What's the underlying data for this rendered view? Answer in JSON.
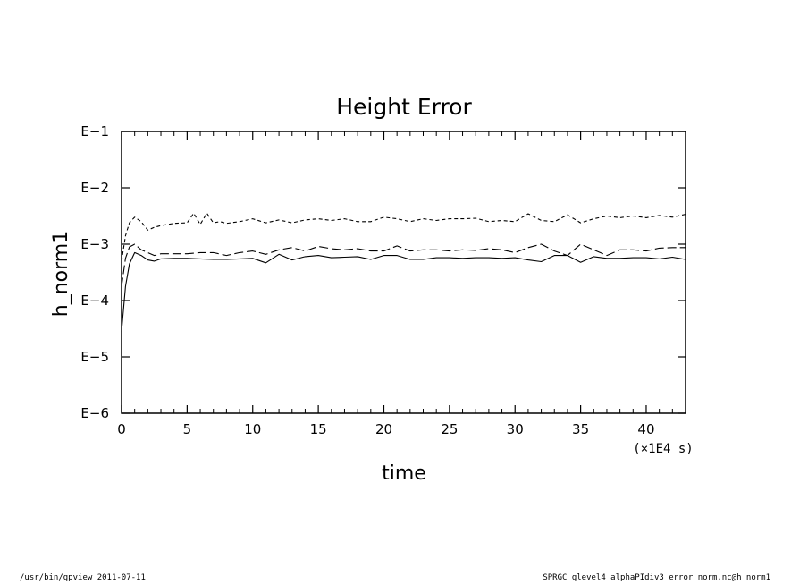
{
  "chart_data": {
    "type": "line",
    "title": "Height Error",
    "xlabel": "time",
    "ylabel": "h_norm1",
    "x_unit": "(×1E4 s)",
    "xlim": [
      0,
      43
    ],
    "ylim": [
      -6,
      -1
    ],
    "yscale": "log",
    "grid": false,
    "x_ticks": [
      0,
      5,
      10,
      15,
      20,
      25,
      30,
      35,
      40
    ],
    "x_tick_labels": [
      "0",
      "5",
      "10",
      "15",
      "20",
      "25",
      "30",
      "35",
      "40"
    ],
    "y_ticks": [
      -1,
      -2,
      -3,
      -4,
      -5,
      -6
    ],
    "y_tick_labels": [
      "E−1",
      "E−2",
      "E−3",
      "E−4",
      "E−5",
      "E−6"
    ],
    "series": [
      {
        "style": "short-dash",
        "x": [
          0,
          0.3,
          0.6,
          1,
          1.5,
          2,
          2.5,
          3,
          4,
          5,
          5.5,
          6,
          6.5,
          7,
          7.5,
          8,
          9,
          10,
          11,
          12,
          13,
          14,
          15,
          16,
          17,
          18,
          19,
          20,
          21,
          22,
          23,
          24,
          25,
          26,
          27,
          28,
          29,
          30,
          31,
          32,
          33,
          34,
          35,
          36,
          37,
          38,
          39,
          40,
          41,
          42,
          43
        ],
        "y": [
          -3.3,
          -2.85,
          -2.62,
          -2.52,
          -2.6,
          -2.75,
          -2.7,
          -2.67,
          -2.63,
          -2.62,
          -2.45,
          -2.65,
          -2.45,
          -2.62,
          -2.6,
          -2.63,
          -2.6,
          -2.55,
          -2.62,
          -2.57,
          -2.62,
          -2.57,
          -2.55,
          -2.58,
          -2.55,
          -2.6,
          -2.6,
          -2.52,
          -2.55,
          -2.6,
          -2.55,
          -2.58,
          -2.55,
          -2.55,
          -2.54,
          -2.6,
          -2.58,
          -2.6,
          -2.46,
          -2.58,
          -2.6,
          -2.48,
          -2.62,
          -2.55,
          -2.5,
          -2.53,
          -2.5,
          -2.53,
          -2.49,
          -2.52,
          -2.47
        ]
      },
      {
        "style": "long-dash",
        "x": [
          0,
          0.3,
          0.6,
          1,
          1.5,
          2,
          2.5,
          3,
          4,
          5,
          6,
          7,
          8,
          9,
          10,
          11,
          12,
          13,
          14,
          15,
          16,
          17,
          18,
          19,
          20,
          21,
          22,
          23,
          24,
          25,
          26,
          27,
          28,
          29,
          30,
          31,
          32,
          33,
          34,
          35,
          36,
          37,
          38,
          39,
          40,
          41,
          42,
          43
        ],
        "y": [
          -3.75,
          -3.25,
          -3.05,
          -3.0,
          -3.1,
          -3.15,
          -3.2,
          -3.17,
          -3.17,
          -3.17,
          -3.15,
          -3.15,
          -3.2,
          -3.15,
          -3.12,
          -3.18,
          -3.1,
          -3.06,
          -3.12,
          -3.04,
          -3.08,
          -3.1,
          -3.08,
          -3.12,
          -3.12,
          -3.03,
          -3.12,
          -3.1,
          -3.1,
          -3.12,
          -3.1,
          -3.11,
          -3.08,
          -3.1,
          -3.15,
          -3.06,
          -3.0,
          -3.12,
          -3.2,
          -3.0,
          -3.1,
          -3.2,
          -3.1,
          -3.1,
          -3.12,
          -3.07,
          -3.06,
          -3.06
        ]
      },
      {
        "style": "solid",
        "x": [
          0,
          0.3,
          0.6,
          1,
          1.5,
          2,
          2.5,
          3,
          4,
          5,
          6,
          7,
          8,
          9,
          10,
          11,
          12,
          13,
          14,
          15,
          16,
          17,
          18,
          19,
          20,
          21,
          22,
          23,
          24,
          25,
          26,
          27,
          28,
          29,
          30,
          31,
          32,
          33,
          34,
          35,
          36,
          37,
          38,
          39,
          40,
          41,
          42,
          43
        ],
        "y": [
          -4.55,
          -3.75,
          -3.35,
          -3.15,
          -3.2,
          -3.28,
          -3.3,
          -3.26,
          -3.25,
          -3.25,
          -3.26,
          -3.27,
          -3.27,
          -3.26,
          -3.25,
          -3.33,
          -3.18,
          -3.28,
          -3.22,
          -3.2,
          -3.24,
          -3.23,
          -3.22,
          -3.27,
          -3.2,
          -3.2,
          -3.27,
          -3.27,
          -3.24,
          -3.24,
          -3.25,
          -3.24,
          -3.24,
          -3.25,
          -3.24,
          -3.28,
          -3.31,
          -3.2,
          -3.2,
          -3.32,
          -3.22,
          -3.25,
          -3.25,
          -3.24,
          -3.24,
          -3.26,
          -3.23,
          -3.27
        ]
      }
    ]
  },
  "footer": {
    "left": "/usr/bin/gpview   2011-07-11",
    "right": "SPRGC_glevel4_alphaPIdiv3_error_norm.nc@h_norm1"
  }
}
